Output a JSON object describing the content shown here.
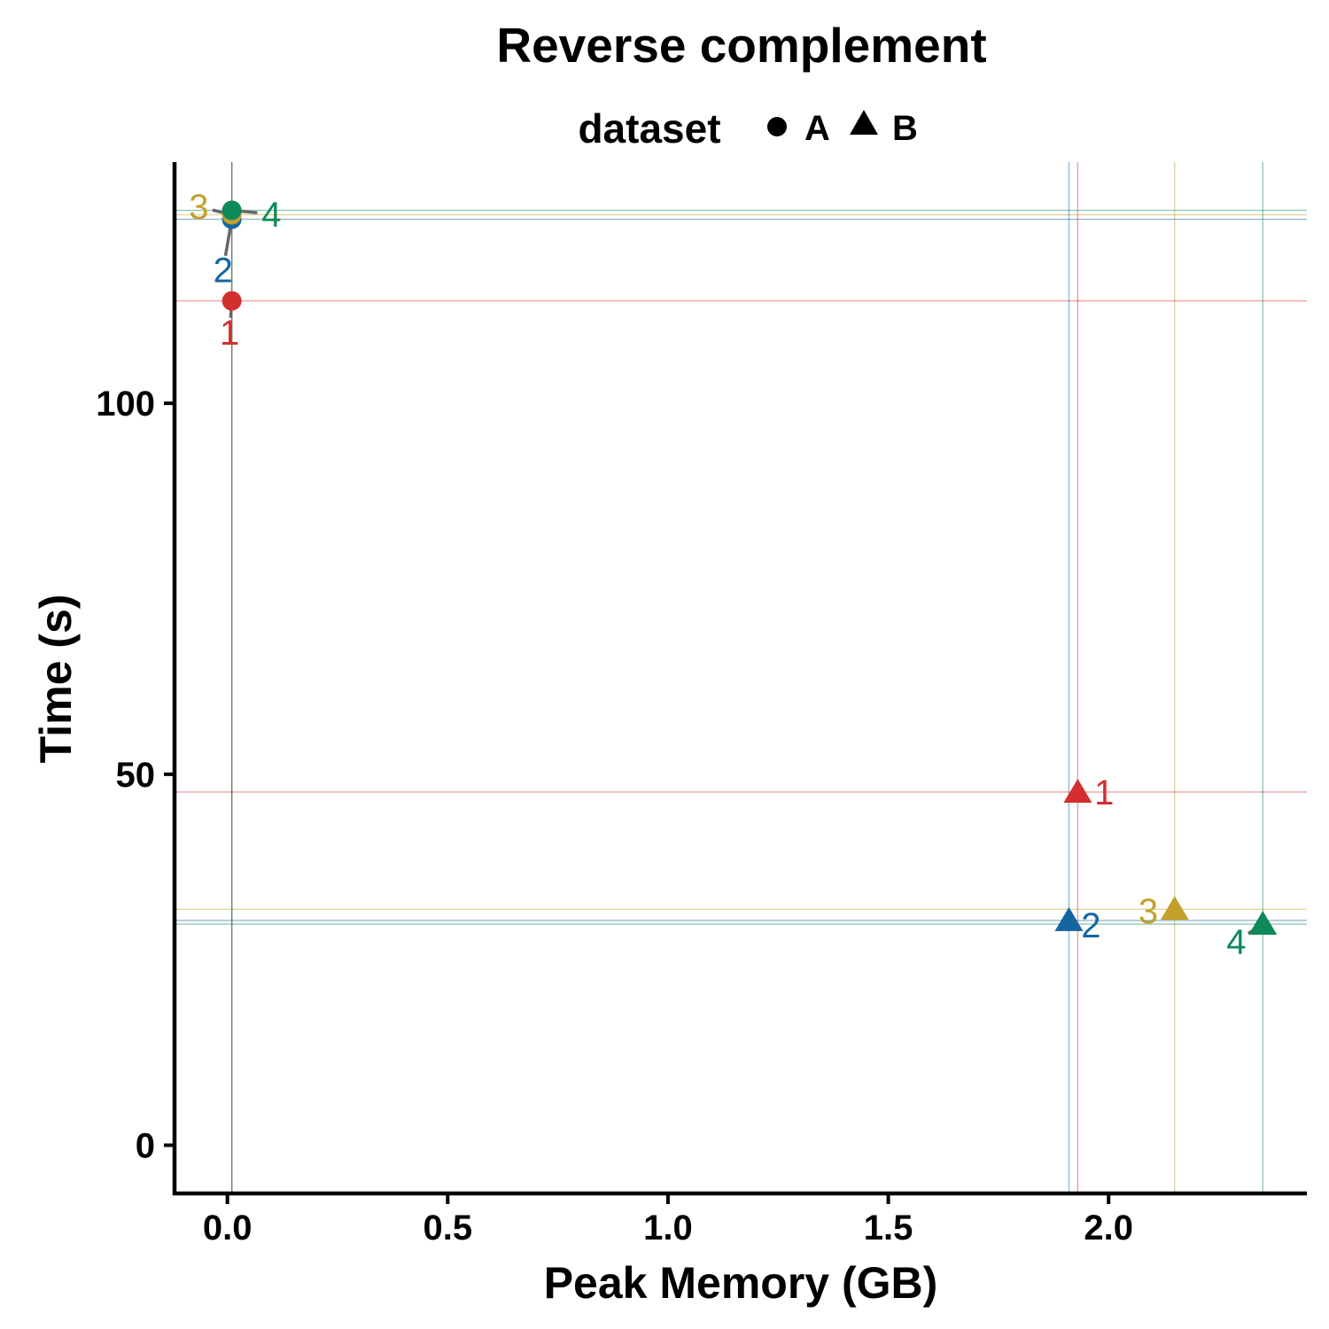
{
  "chart_data": {
    "type": "scatter",
    "title": "Reverse complement",
    "xlabel": "Peak Memory (GB)",
    "ylabel": "Time (s)",
    "xlim": [
      -0.12,
      2.45
    ],
    "ylim": [
      -6.5,
      132.5
    ],
    "x_ticks": [
      0.0,
      0.5,
      1.0,
      1.5,
      2.0
    ],
    "x_tick_labels": [
      "0.0",
      "0.5",
      "1.0",
      "1.5",
      "2.0"
    ],
    "y_ticks": [
      0,
      50,
      100
    ],
    "y_tick_labels": [
      "0",
      "50",
      "100"
    ],
    "grid": false,
    "legend": {
      "title": "dataset",
      "position": "top",
      "entries": [
        {
          "label": "A",
          "shape": "circle"
        },
        {
          "label": "B",
          "shape": "triangle"
        }
      ]
    },
    "groups": [
      {
        "label": "1",
        "color": "#d32f2f"
      },
      {
        "label": "2",
        "color": "#1565a0"
      },
      {
        "label": "3",
        "color": "#c4a02b"
      },
      {
        "label": "4",
        "color": "#0e8a5a"
      }
    ],
    "points": [
      {
        "group": "1",
        "dataset": "A",
        "x": 0.01,
        "y": 113.8
      },
      {
        "group": "2",
        "dataset": "A",
        "x": 0.01,
        "y": 124.8
      },
      {
        "group": "3",
        "dataset": "A",
        "x": 0.01,
        "y": 125.4
      },
      {
        "group": "4",
        "dataset": "A",
        "x": 0.01,
        "y": 126.0
      },
      {
        "group": "1",
        "dataset": "B",
        "x": 1.93,
        "y": 47.6
      },
      {
        "group": "2",
        "dataset": "B",
        "x": 1.91,
        "y": 30.3
      },
      {
        "group": "3",
        "dataset": "B",
        "x": 2.15,
        "y": 31.8
      },
      {
        "group": "4",
        "dataset": "B",
        "x": 2.35,
        "y": 29.8
      }
    ],
    "point_labels": [
      {
        "text": "1",
        "group": "1",
        "x": 0.005,
        "y": 109.6
      },
      {
        "text": "2",
        "group": "2",
        "x": -0.01,
        "y": 118.0
      },
      {
        "text": "3",
        "group": "3",
        "x": -0.065,
        "y": 126.5
      },
      {
        "text": "4",
        "group": "4",
        "x": 0.1,
        "y": 125.5
      },
      {
        "text": "1",
        "group": "1",
        "x": 1.99,
        "y": 47.6
      },
      {
        "text": "2",
        "group": "2",
        "x": 1.96,
        "y": 29.7
      },
      {
        "text": "3",
        "group": "3",
        "x": 2.09,
        "y": 31.6
      },
      {
        "text": "4",
        "group": "4",
        "x": 2.29,
        "y": 27.5
      }
    ]
  }
}
